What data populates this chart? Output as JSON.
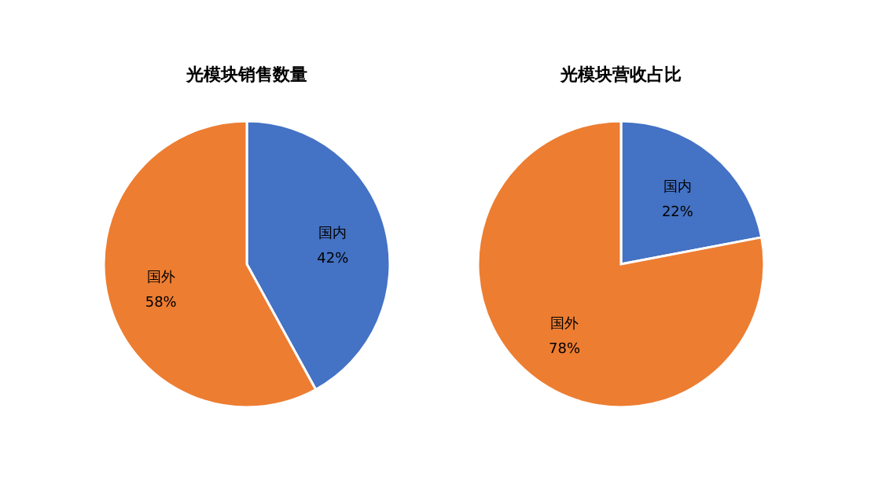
{
  "chart_data": [
    {
      "type": "pie",
      "title": "光模块销售数量",
      "categories": [
        "国内",
        "国外"
      ],
      "values": [
        42,
        58
      ],
      "colors": [
        "#4472c4",
        "#ed7d31"
      ],
      "value_labels": [
        "42%",
        "58%"
      ]
    },
    {
      "type": "pie",
      "title": "光模块营收占比",
      "categories": [
        "国内",
        "国外"
      ],
      "values": [
        22,
        78
      ],
      "colors": [
        "#4472c4",
        "#ed7d31"
      ],
      "value_labels": [
        "22%",
        "78%"
      ]
    }
  ]
}
